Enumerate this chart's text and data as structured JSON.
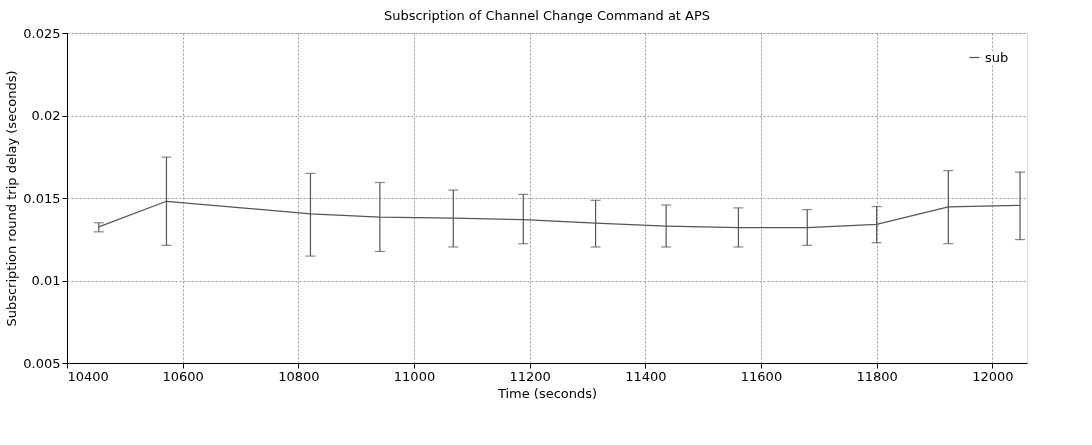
{
  "chart_data": {
    "type": "line",
    "title": "Subscription of Channel Change Command at APS",
    "xlabel": "Time (seconds)",
    "ylabel": "Subscription round trip delay (seconds)",
    "x": [
      10455,
      10572,
      10821,
      10941,
      11068,
      11189,
      11314,
      11436,
      11561,
      11680,
      11800,
      11924,
      12048
    ],
    "series": [
      {
        "name": "sub",
        "color": "#555555",
        "values": [
          0.01325,
          0.0148,
          0.01404,
          0.01384,
          0.01378,
          0.01369,
          0.01348,
          0.0133,
          0.01321,
          0.01321,
          0.0134,
          0.01446,
          0.01455
        ],
        "errors": [
          [
            0.01295,
            0.0135
          ],
          [
            0.01213,
            0.01748
          ],
          [
            0.01148,
            0.01649
          ],
          [
            0.01176,
            0.01594
          ],
          [
            0.01203,
            0.01548
          ],
          [
            0.01223,
            0.01522
          ],
          [
            0.01203,
            0.01486
          ],
          [
            0.01203,
            0.01458
          ],
          [
            0.01203,
            0.0144
          ],
          [
            0.01213,
            0.0143
          ],
          [
            0.01229,
            0.01448
          ],
          [
            0.01223,
            0.01666
          ],
          [
            0.01248,
            0.01657
          ]
        ]
      }
    ],
    "xlim": [
      10400,
      12060
    ],
    "xticks": [
      10400,
      10600,
      10800,
      11000,
      11200,
      11400,
      11600,
      11800,
      12000
    ],
    "ylim": [
      0.005,
      0.025
    ],
    "yticks": [
      0.005,
      0.01,
      0.015,
      0.02,
      0.025
    ],
    "grid": true,
    "legend": "top right",
    "marker": "none",
    "line_style": "solid"
  }
}
